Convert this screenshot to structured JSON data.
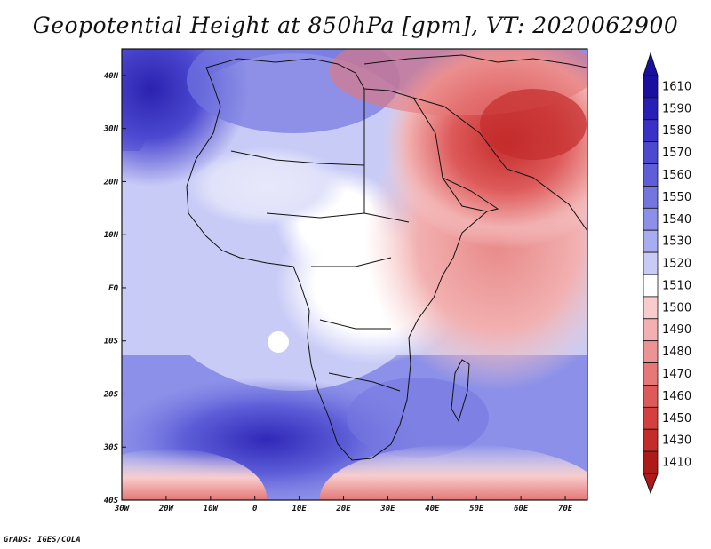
{
  "title": "Geopotential Height at 850hPa [gpm], VT: 2020062900",
  "credit": "GrADS: IGES/COLA",
  "map": {
    "lon_range": [
      -30,
      75
    ],
    "lat_range": [
      -40,
      45
    ],
    "lon_ticks": [
      {
        "value": -30,
        "label": "30W"
      },
      {
        "value": -20,
        "label": "20W"
      },
      {
        "value": -10,
        "label": "10W"
      },
      {
        "value": 0,
        "label": "0"
      },
      {
        "value": 10,
        "label": "10E"
      },
      {
        "value": 20,
        "label": "20E"
      },
      {
        "value": 30,
        "label": "30E"
      },
      {
        "value": 40,
        "label": "40E"
      },
      {
        "value": 50,
        "label": "50E"
      },
      {
        "value": 60,
        "label": "60E"
      },
      {
        "value": 70,
        "label": "70E"
      }
    ],
    "lat_ticks": [
      {
        "value": 40,
        "label": "40N"
      },
      {
        "value": 30,
        "label": "30N"
      },
      {
        "value": 20,
        "label": "20N"
      },
      {
        "value": 10,
        "label": "10N"
      },
      {
        "value": 0,
        "label": "EQ"
      },
      {
        "value": -10,
        "label": "10S"
      },
      {
        "value": -20,
        "label": "20S"
      },
      {
        "value": -30,
        "label": "30S"
      },
      {
        "value": -40,
        "label": "40S"
      }
    ]
  },
  "colorbar": {
    "levels": [
      {
        "label": "1610",
        "color": "#1a10a0"
      },
      {
        "label": "1590",
        "color": "#2820b4"
      },
      {
        "label": "1580",
        "color": "#3a32c6"
      },
      {
        "label": "1570",
        "color": "#4c48d0"
      },
      {
        "label": "1560",
        "color": "#5e5ed8"
      },
      {
        "label": "1550",
        "color": "#7476e0"
      },
      {
        "label": "1540",
        "color": "#8c90e8"
      },
      {
        "label": "1530",
        "color": "#a8acf0"
      },
      {
        "label": "1520",
        "color": "#c8cbf6"
      },
      {
        "label": "1510",
        "color": "#ffffff"
      },
      {
        "label": "1500",
        "color": "#f8cccc"
      },
      {
        "label": "1490",
        "color": "#f2b0b0"
      },
      {
        "label": "1480",
        "color": "#ec9494"
      },
      {
        "label": "1470",
        "color": "#e67878"
      },
      {
        "label": "1460",
        "color": "#de5a5a"
      },
      {
        "label": "1450",
        "color": "#d44040"
      },
      {
        "label": "1430",
        "color": "#c42c2c"
      },
      {
        "label": "1410",
        "color": "#ae1a1a"
      }
    ],
    "top_arrow_color": "#1a10a0",
    "bottom_arrow_color": "#ae1a1a"
  }
}
